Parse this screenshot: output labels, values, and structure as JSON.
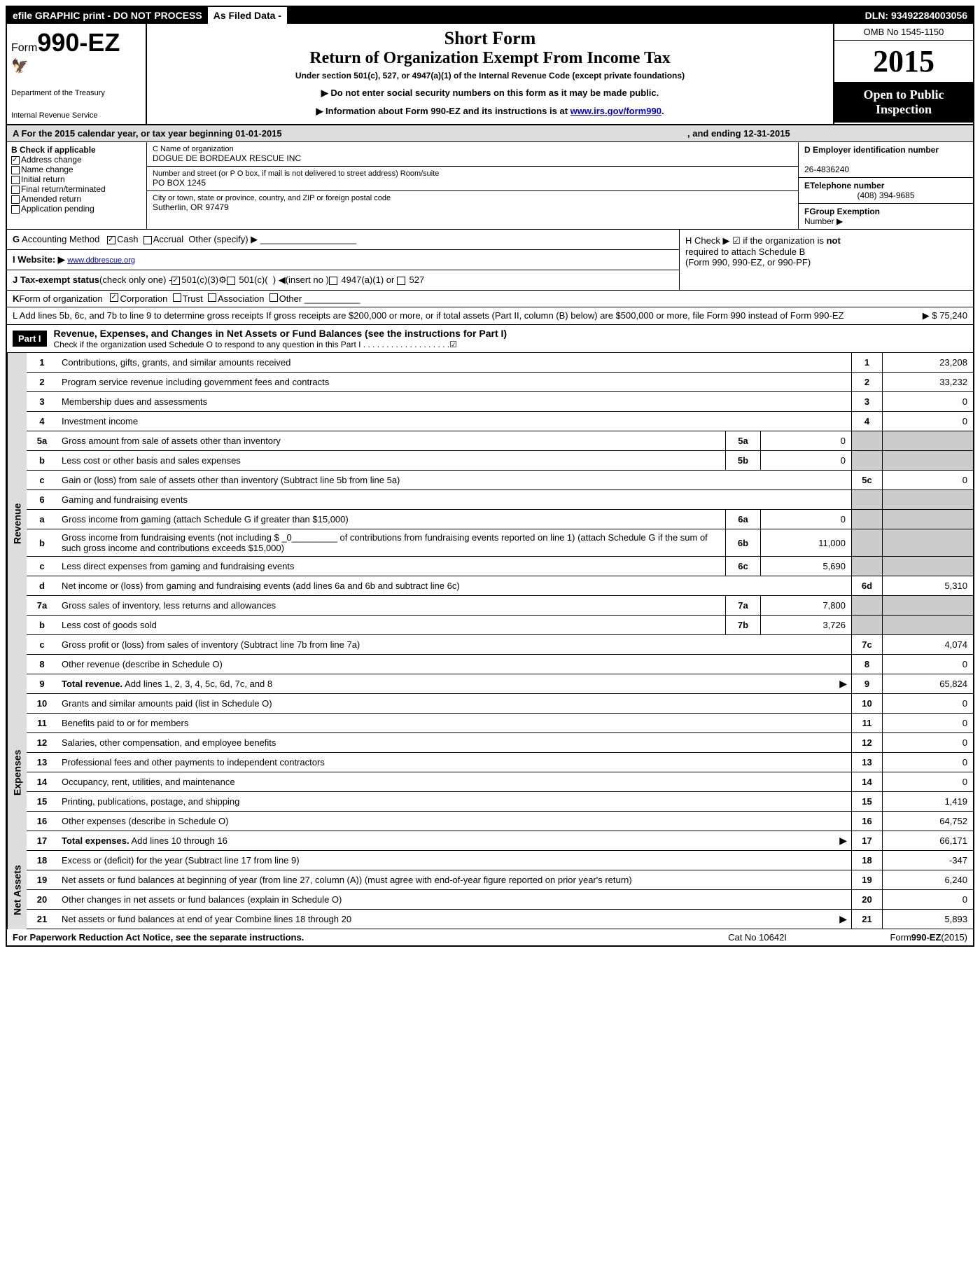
{
  "top": {
    "efile": "efile GRAPHIC print - DO NOT PROCESS",
    "asfiled": "As Filed Data -",
    "dln": "DLN: 93492284003056"
  },
  "header": {
    "form_prefix": "Form",
    "form_number": "990-EZ",
    "dept1": "Department of the Treasury",
    "dept2": "Internal Revenue Service",
    "short_form": "Short Form",
    "return_title": "Return of Organization Exempt From Income Tax",
    "under": "Under section 501(c), 527, or 4947(a)(1) of the Internal Revenue Code (except private foundations)",
    "notice1": "▶ Do not enter social security numbers on this form as it may be made public.",
    "notice2": "▶ Information about Form 990-EZ and its instructions is at",
    "irs_link": "www.irs.gov/form990",
    "omb": "OMB No 1545-1150",
    "year": "2015",
    "public1": "Open to Public",
    "public2": "Inspection"
  },
  "row_a": {
    "text1": "A  For the 2015 calendar year, or tax year beginning 01-01-2015",
    "text2": ", and ending 12-31-2015"
  },
  "section_b": {
    "label": "B  Check if applicable",
    "opts": [
      "Address change",
      "Name change",
      "Initial return",
      "Final return/terminated",
      "Amended return",
      "Application pending"
    ]
  },
  "section_c": {
    "name_label": "C Name of organization",
    "name": "DOGUE DE BORDEAUX RESCUE INC",
    "street_label": "Number and street (or P  O  box, if mail is not delivered to street address) Room/suite",
    "street": "PO BOX 1245",
    "city_label": "City or town, state or province, country, and ZIP or foreign postal code",
    "city": "Sutherlin, OR  97479"
  },
  "section_d": {
    "ein_label": "D Employer identification number",
    "ein": "26-4836240",
    "tel_label": "ETelephone number",
    "tel": "(408) 394-9685",
    "group_label": "FGroup Exemption",
    "group_label2": "Number   ▶"
  },
  "g": {
    "text": "G Accounting Method   ☑Cash  ☐Accrual  Other (specify) ▶"
  },
  "h": {
    "text1": "H  Check ▶ ☑ if the organization is ",
    "bold": "not",
    "text2": "required to attach Schedule B",
    "text3": "(Form 990, 990-EZ, or 990-PF)"
  },
  "i": {
    "label": "I Website: ▶",
    "url": "www.ddbrescue.org"
  },
  "j": {
    "text": "J Tax-exempt status(check only one) -☑501(c)(3)⚙☐ 501(c)(  ) ◀(insert no )☐ 4947(a)(1) or ☐ 527"
  },
  "k": {
    "text": "K Form of organization   ☑Corporation  ☐Trust  ☐Association  ☐Other"
  },
  "l": {
    "text": "L Add lines 5b, 6c, and 7b to line 9 to determine gross receipts  If gross receipts are $200,000 or more, or if total assets (Part II, column (B) below) are $500,000 or more, file Form 990 instead of Form 990-EZ",
    "arrow": "▶",
    "val": "$ 75,240"
  },
  "part1": {
    "label": "Part I",
    "title": "Revenue, Expenses, and Changes in Net Assets or Fund Balances (see the instructions for Part I)",
    "check": "Check if the organization used Schedule O to respond to any question in this Part I  .  .  .  .  .  .  .  .  .  .  .  .  .  .  .  .  .  .  .☑"
  },
  "sides": {
    "revenue": "Revenue",
    "expenses": "Expenses",
    "netassets": "Net Assets"
  },
  "lines": {
    "1": {
      "n": "1",
      "t": "Contributions, gifts, grants, and similar amounts received",
      "rn": "1",
      "rv": "23,208"
    },
    "2": {
      "n": "2",
      "t": "Program service revenue including government fees and contracts",
      "rn": "2",
      "rv": "33,232"
    },
    "3": {
      "n": "3",
      "t": "Membership dues and assessments",
      "rn": "3",
      "rv": "0"
    },
    "4": {
      "n": "4",
      "t": "Investment income",
      "rn": "4",
      "rv": "0"
    },
    "5a": {
      "n": "5a",
      "t": "Gross amount from sale of assets other than inventory",
      "sn": "5a",
      "sv": "0"
    },
    "5b": {
      "n": "b",
      "t": "Less  cost or other basis and sales expenses",
      "sn": "5b",
      "sv": "0"
    },
    "5c": {
      "n": "c",
      "t": "Gain or (loss) from sale of assets other than inventory (Subtract line 5b from line 5a)",
      "rn": "5c",
      "rv": "0"
    },
    "6": {
      "n": "6",
      "t": "Gaming and fundraising events"
    },
    "6a": {
      "n": "a",
      "t": "Gross income from gaming (attach Schedule G if greater than $15,000)",
      "sn": "6a",
      "sv": "0"
    },
    "6b": {
      "n": "b",
      "t": "Gross income from fundraising events (not including $ _0_________ of contributions from fundraising events reported on line 1) (attach Schedule G if the sum of such gross income and contributions exceeds $15,000)",
      "sn": "6b",
      "sv": "11,000"
    },
    "6c": {
      "n": "c",
      "t": "Less  direct expenses from gaming and fundraising events",
      "sn": "6c",
      "sv": "5,690"
    },
    "6d": {
      "n": "d",
      "t": "Net income or (loss) from gaming and fundraising events (add lines 6a and 6b and subtract line 6c)",
      "rn": "6d",
      "rv": "5,310"
    },
    "7a": {
      "n": "7a",
      "t": "Gross sales of inventory, less returns and allowances",
      "sn": "7a",
      "sv": "7,800"
    },
    "7b": {
      "n": "b",
      "t": "Less  cost of goods sold",
      "sn": "7b",
      "sv": "3,726"
    },
    "7c": {
      "n": "c",
      "t": "Gross profit or (loss) from sales of inventory (Subtract line 7b from line 7a)",
      "rn": "7c",
      "rv": "4,074"
    },
    "8": {
      "n": "8",
      "t": "Other revenue (describe in Schedule O)",
      "rn": "8",
      "rv": "0"
    },
    "9": {
      "n": "9",
      "t": "Total revenue. Add lines 1, 2, 3, 4, 5c, 6d, 7c, and 8",
      "bold": true,
      "arrow": true,
      "rn": "9",
      "rv": "65,824"
    },
    "10": {
      "n": "10",
      "t": "Grants and similar amounts paid (list in Schedule O)",
      "rn": "10",
      "rv": "0"
    },
    "11": {
      "n": "11",
      "t": "Benefits paid to or for members",
      "rn": "11",
      "rv": "0"
    },
    "12": {
      "n": "12",
      "t": "Salaries, other compensation, and employee benefits",
      "rn": "12",
      "rv": "0"
    },
    "13": {
      "n": "13",
      "t": "Professional fees and other payments to independent contractors",
      "rn": "13",
      "rv": "0"
    },
    "14": {
      "n": "14",
      "t": "Occupancy, rent, utilities, and maintenance",
      "rn": "14",
      "rv": "0"
    },
    "15": {
      "n": "15",
      "t": "Printing, publications, postage, and shipping",
      "rn": "15",
      "rv": "1,419"
    },
    "16": {
      "n": "16",
      "t": "Other expenses (describe in Schedule O)",
      "rn": "16",
      "rv": "64,752"
    },
    "17": {
      "n": "17",
      "t": "Total expenses. Add lines 10 through 16",
      "bold": true,
      "arrow": true,
      "rn": "17",
      "rv": "66,171"
    },
    "18": {
      "n": "18",
      "t": "Excess or (deficit) for the year (Subtract line 17 from line 9)",
      "rn": "18",
      "rv": "-347"
    },
    "19": {
      "n": "19",
      "t": "Net assets or fund balances at beginning of year (from line 27, column (A)) (must agree with end-of-year figure reported on prior year's return)",
      "rn": "19",
      "rv": "6,240"
    },
    "20": {
      "n": "20",
      "t": "Other changes in net assets or fund balances (explain in Schedule O)",
      "rn": "20",
      "rv": "0"
    },
    "21": {
      "n": "21",
      "t": "Net assets or fund balances at end of year  Combine lines 18 through 20",
      "arrow": true,
      "rn": "21",
      "rv": "5,893"
    }
  },
  "footer": {
    "left": "For Paperwork Reduction Act Notice, see the separate instructions.",
    "mid": "Cat No 10642I",
    "right": "Form990-EZ(2015)"
  }
}
